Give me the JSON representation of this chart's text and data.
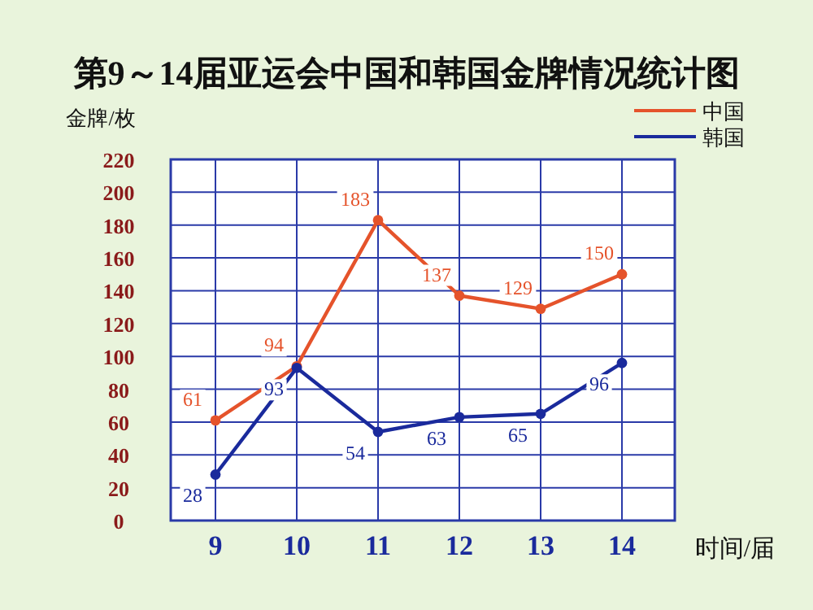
{
  "chart_data": {
    "type": "line",
    "title": "第9～14届亚运会中国和韩国金牌情况统计图",
    "ylabel": "金牌/枚",
    "xlabel": "时间/届",
    "categories": [
      "9",
      "10",
      "11",
      "12",
      "13",
      "14"
    ],
    "series": [
      {
        "name": "中国",
        "color": "#e5532b",
        "values": [
          61,
          94,
          183,
          137,
          129,
          150
        ]
      },
      {
        "name": "韩国",
        "color": "#1a2a9c",
        "values": [
          28,
          93,
          54,
          63,
          65,
          96
        ]
      }
    ],
    "ylim": [
      0,
      220
    ],
    "yticks": [
      0,
      20,
      40,
      60,
      80,
      100,
      120,
      140,
      160,
      180,
      200,
      220
    ],
    "grid": true,
    "legend": "top right",
    "marker": "circle",
    "line_style": "solid",
    "data_labels": true
  }
}
